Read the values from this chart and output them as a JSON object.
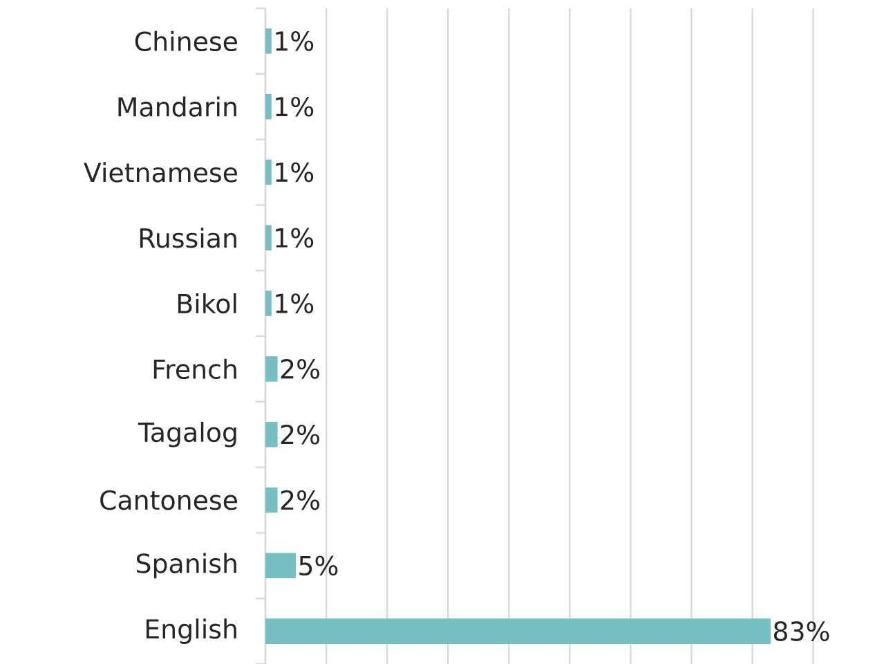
{
  "chart_data": {
    "type": "bar",
    "orientation": "horizontal",
    "categories": [
      "Chinese",
      "Mandarin",
      "Vietnamese",
      "Russian",
      "Bikol",
      "French",
      "Tagalog",
      "Cantonese",
      "Spanish",
      "English"
    ],
    "values": [
      1,
      1,
      1,
      1,
      1,
      2,
      2,
      2,
      5,
      83
    ],
    "value_labels": [
      "1%",
      "1%",
      "1%",
      "1%",
      "1%",
      "2%",
      "2%",
      "2%",
      "5%",
      "83%"
    ],
    "color": "#76c0c4",
    "grid": "x",
    "tick_labels": "y"
  }
}
